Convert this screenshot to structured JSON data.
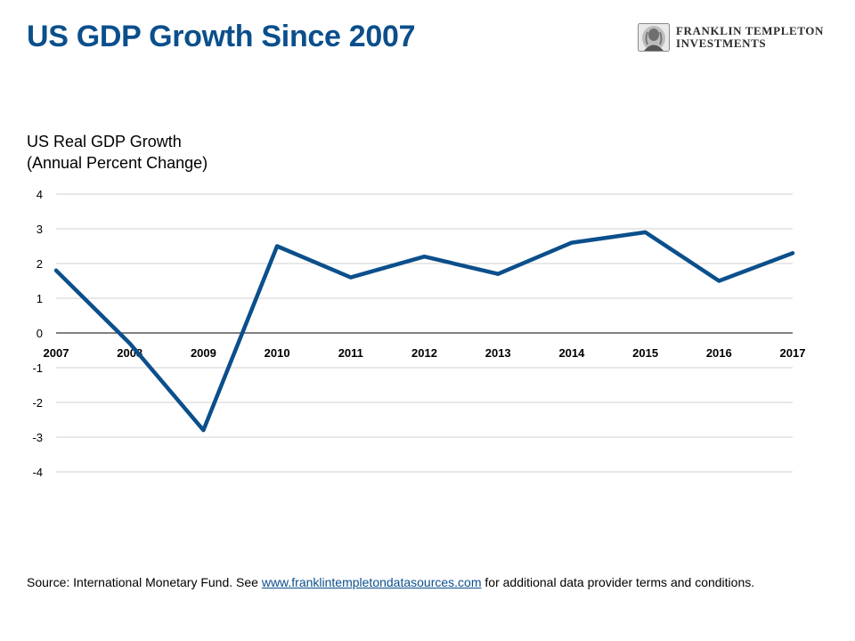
{
  "slide": {
    "title": "US GDP Growth Since 2007"
  },
  "logo": {
    "line1": "FRANKLIN TEMPLETON",
    "line2": "INVESTMENTS"
  },
  "chart_data": {
    "type": "line",
    "title_line1": "US Real GDP Growth",
    "title_line2": "(Annual Percent Change)",
    "categories": [
      "2007",
      "2008",
      "2009",
      "2010",
      "2011",
      "2012",
      "2013",
      "2014",
      "2015",
      "2016",
      "2017"
    ],
    "series": [
      {
        "values": [
          1.8,
          -0.3,
          -2.8,
          2.5,
          1.6,
          2.2,
          1.7,
          2.6,
          2.9,
          1.5,
          2.3
        ]
      }
    ],
    "yticks": [
      "4",
      "3",
      "2",
      "1",
      "0",
      "-1",
      "-2",
      "-3",
      "-4"
    ],
    "ylim": [
      -4,
      4
    ],
    "grid": true,
    "line_color": "#0b4f8c"
  },
  "footer": {
    "prefix": "Source: International  Monetary Fund. See ",
    "link": "www.franklintempletondatasources.com",
    "suffix": "  for additional data provider terms and conditions."
  }
}
